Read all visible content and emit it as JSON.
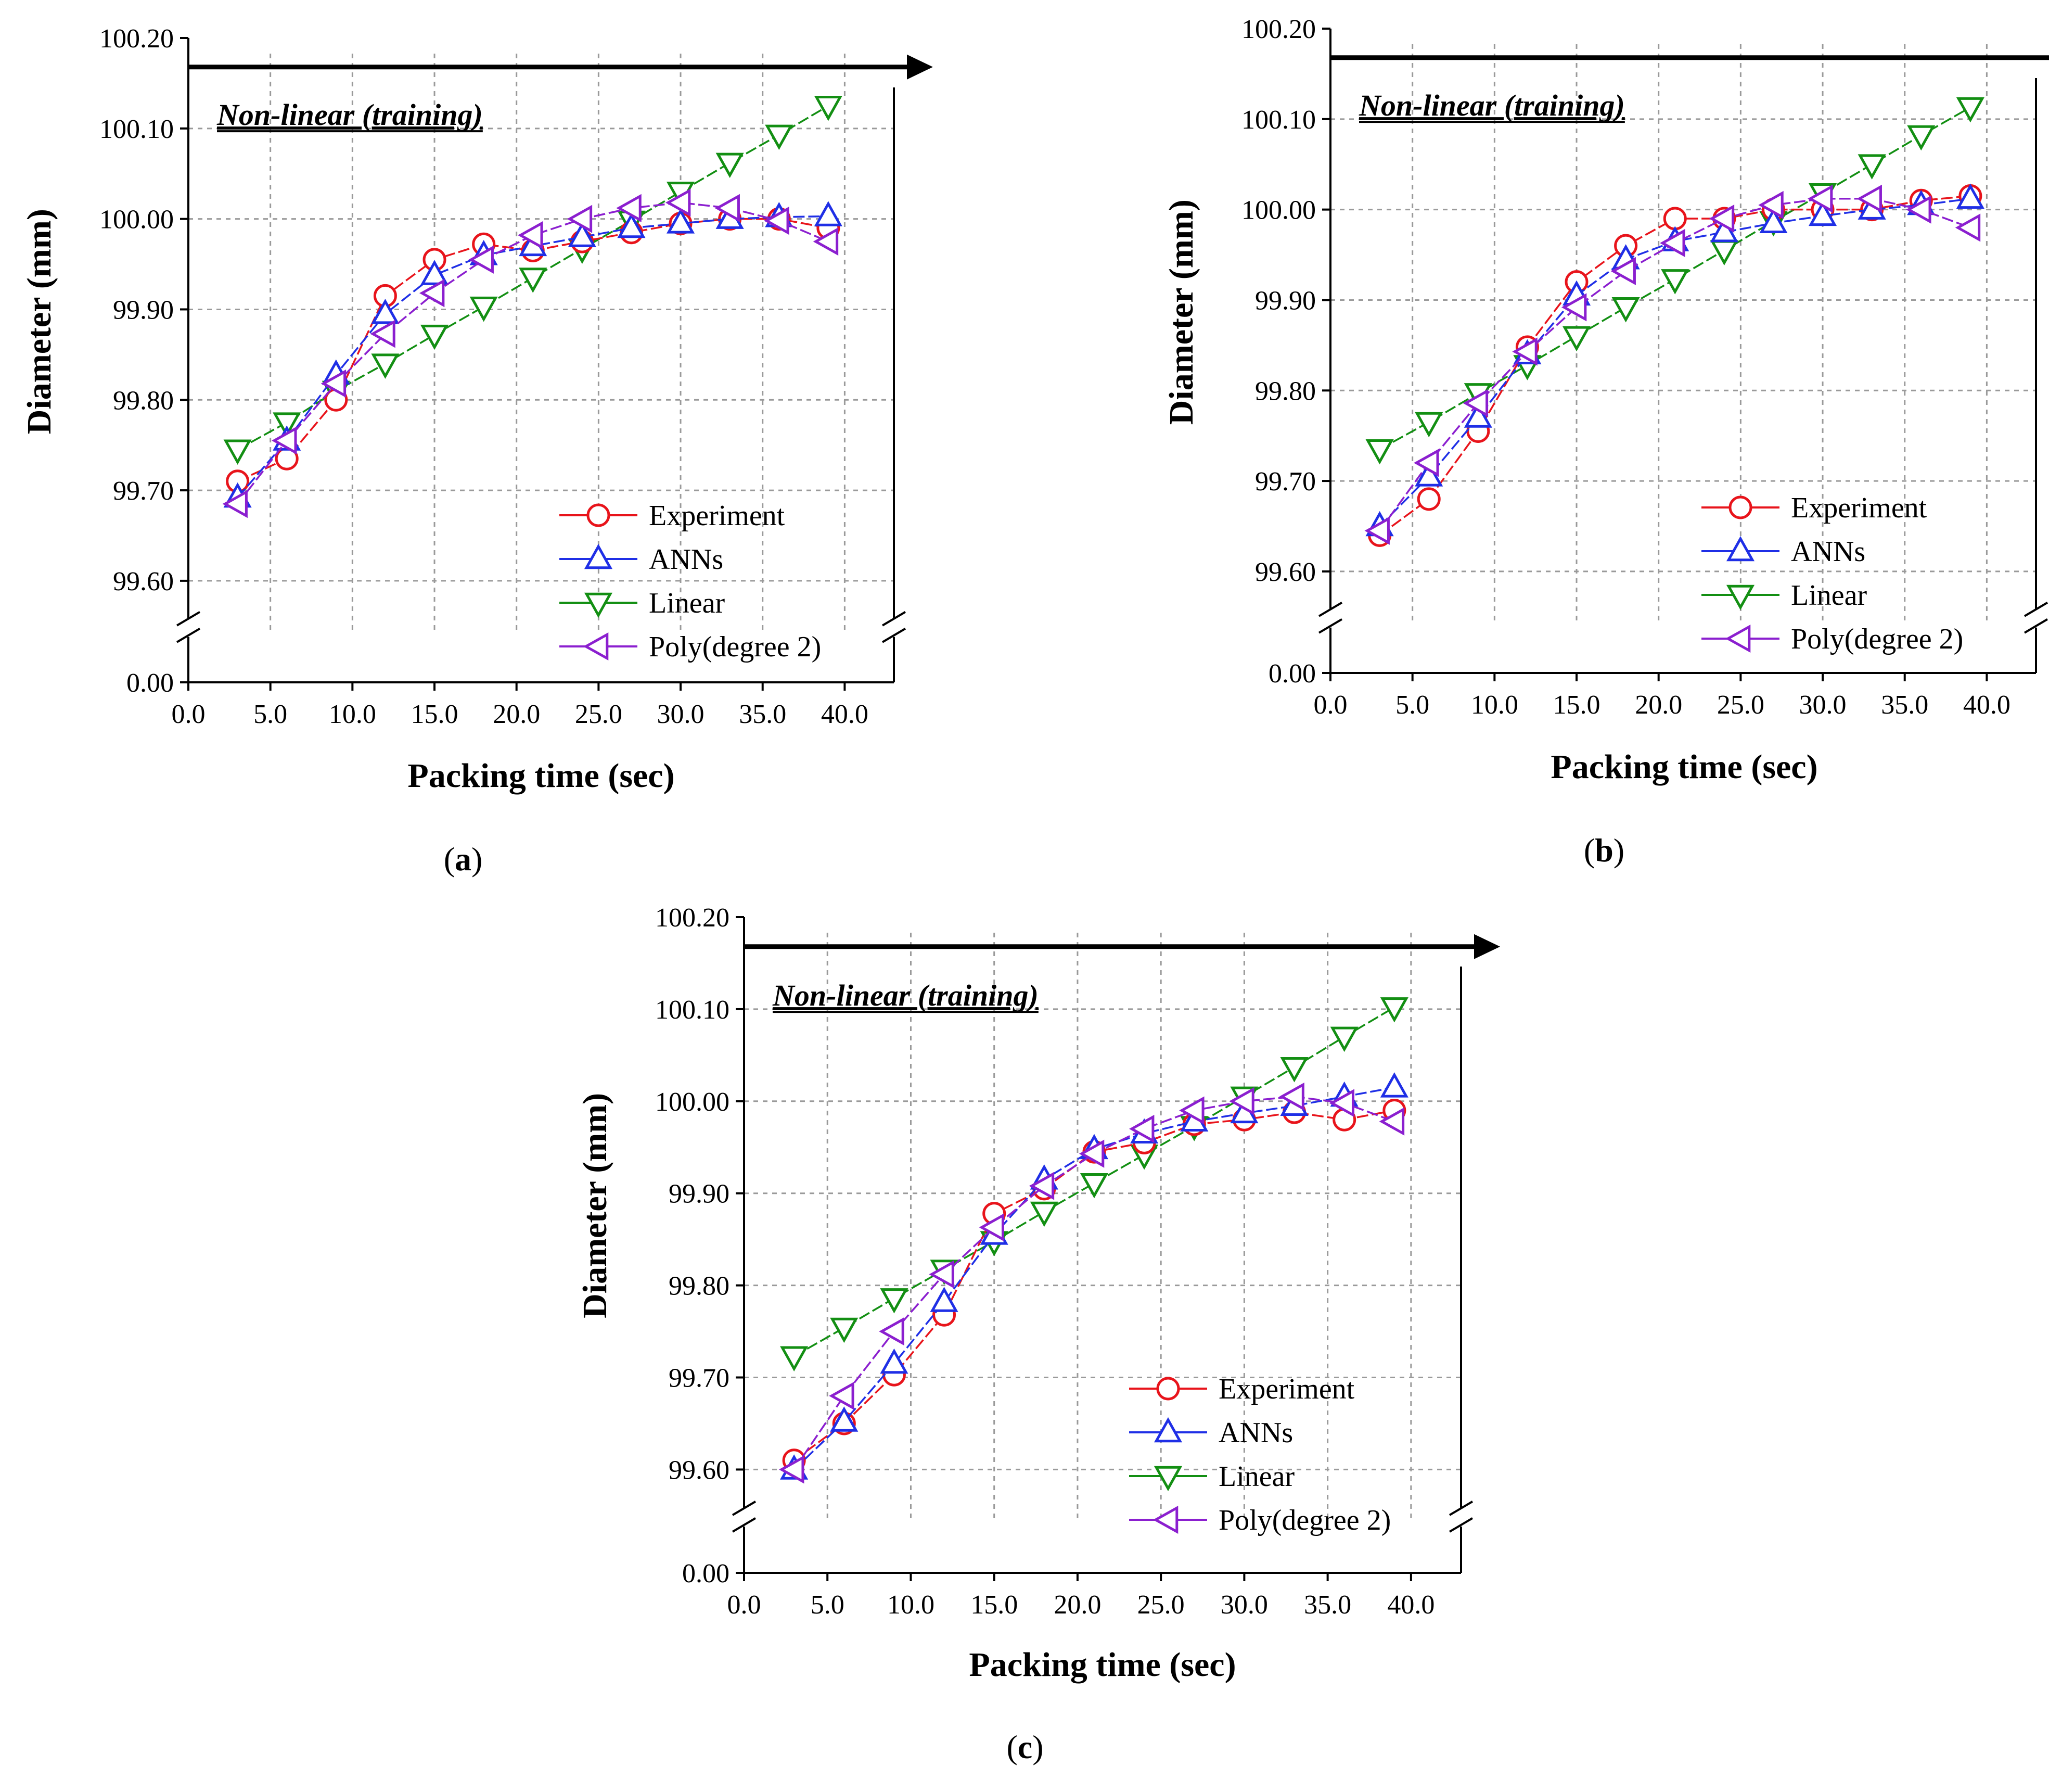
{
  "figure": {
    "panels": [
      "a",
      "b",
      "c"
    ]
  },
  "colors": {
    "Experiment": "#e8141b",
    "ANNs": "#1f2fe6",
    "Linear": "#138f13",
    "Poly(degree 2)": "#8b1fcf"
  },
  "chart_data": [
    {
      "panel": "a",
      "type": "line",
      "xlabel": "Packing time (sec)",
      "ylabel": "Diameter (mm)",
      "annotation": "Non-linear (training)",
      "x_ticks": [
        "0.0",
        "5.0",
        "10.0",
        "15.0",
        "20.0",
        "25.0",
        "30.0",
        "35.0",
        "40.0"
      ],
      "y_ticks": [
        "0.00",
        "99.60",
        "99.70",
        "99.80",
        "99.90",
        "100.00",
        "100.10",
        "100.20"
      ],
      "xlim": [
        0,
        43
      ],
      "ylim_broken": [
        99.55,
        100.2
      ],
      "legend_position": "lower-right",
      "x": [
        3,
        6,
        9,
        12,
        15,
        18,
        21,
        24,
        27,
        30,
        33,
        36,
        39
      ],
      "series": [
        {
          "name": "Experiment",
          "marker": "circle",
          "values": [
            99.71,
            99.735,
            99.8,
            99.915,
            99.955,
            99.972,
            99.965,
            99.975,
            99.985,
            99.995,
            100.0,
            100.0,
            99.99
          ]
        },
        {
          "name": "ANNs",
          "marker": "triangle-up",
          "values": [
            99.692,
            99.755,
            99.828,
            99.895,
            99.938,
            99.96,
            99.97,
            99.98,
            99.99,
            99.995,
            100.0,
            100.002,
            100.003
          ]
        },
        {
          "name": "Linear",
          "marker": "triangle-down",
          "values": [
            99.745,
            99.775,
            99.81,
            99.84,
            99.872,
            99.903,
            99.935,
            99.967,
            99.998,
            100.03,
            100.062,
            100.093,
            100.125
          ]
        },
        {
          "name": "Poly(degree 2)",
          "marker": "triangle-left",
          "values": [
            99.685,
            99.755,
            99.818,
            99.873,
            99.918,
            99.955,
            99.982,
            100.0,
            100.012,
            100.018,
            100.012,
            99.998,
            99.975
          ]
        }
      ]
    },
    {
      "panel": "b",
      "type": "line",
      "xlabel": "Packing time (sec)",
      "ylabel": "Diameter (mm)",
      "annotation": "Non-linear (training)",
      "x_ticks": [
        "0.0",
        "5.0",
        "10.0",
        "15.0",
        "20.0",
        "25.0",
        "30.0",
        "35.0",
        "40.0"
      ],
      "y_ticks": [
        "0.00",
        "99.60",
        "99.70",
        "99.80",
        "99.90",
        "100.00",
        "100.10",
        "100.20"
      ],
      "xlim": [
        0,
        43
      ],
      "ylim_broken": [
        99.55,
        100.2
      ],
      "legend_position": "lower-right",
      "x": [
        3,
        6,
        9,
        12,
        15,
        18,
        21,
        24,
        27,
        30,
        33,
        36,
        39
      ],
      "series": [
        {
          "name": "Experiment",
          "marker": "circle",
          "values": [
            99.64,
            99.68,
            99.755,
            99.848,
            99.92,
            99.96,
            99.99,
            99.99,
            100.0,
            100.0,
            100.0,
            100.01,
            100.015
          ]
        },
        {
          "name": "ANNs",
          "marker": "triangle-up",
          "values": [
            99.65,
            99.705,
            99.77,
            99.84,
            99.905,
            99.945,
            99.965,
            99.975,
            99.985,
            99.993,
            100.0,
            100.005,
            100.012
          ]
        },
        {
          "name": "Linear",
          "marker": "triangle-down",
          "values": [
            99.735,
            99.765,
            99.797,
            99.828,
            99.86,
            99.892,
            99.923,
            99.955,
            99.987,
            100.018,
            100.05,
            100.082,
            100.113
          ]
        },
        {
          "name": "Poly(degree 2)",
          "marker": "triangle-left",
          "values": [
            99.645,
            99.72,
            99.786,
            99.843,
            99.892,
            99.932,
            99.963,
            99.99,
            100.005,
            100.012,
            100.012,
            100.0,
            99.98
          ]
        }
      ]
    },
    {
      "panel": "c",
      "type": "line",
      "xlabel": "Packing time (sec)",
      "ylabel": "Diameter (mm)",
      "annotation": "Non-linear (training)",
      "x_ticks": [
        "0.0",
        "5.0",
        "10.0",
        "15.0",
        "20.0",
        "25.0",
        "30.0",
        "35.0",
        "40.0"
      ],
      "y_ticks": [
        "0.00",
        "99.60",
        "99.70",
        "99.80",
        "99.90",
        "100.00",
        "100.10",
        "100.20"
      ],
      "xlim": [
        0,
        43
      ],
      "ylim_broken": [
        99.55,
        100.2
      ],
      "legend_position": "lower-right",
      "x": [
        3,
        6,
        9,
        12,
        15,
        18,
        21,
        24,
        27,
        30,
        33,
        36,
        39
      ],
      "series": [
        {
          "name": "Experiment",
          "marker": "circle",
          "values": [
            99.61,
            99.65,
            99.703,
            99.768,
            99.878,
            99.905,
            99.945,
            99.955,
            99.975,
            99.98,
            99.988,
            99.98,
            99.99
          ]
        },
        {
          "name": "ANNs",
          "marker": "triangle-up",
          "values": [
            99.6,
            99.652,
            99.715,
            99.782,
            99.855,
            99.915,
            99.948,
            99.965,
            99.978,
            99.987,
            99.995,
            100.005,
            100.015
          ]
        },
        {
          "name": "Linear",
          "marker": "triangle-down",
          "values": [
            99.723,
            99.754,
            99.786,
            99.817,
            99.848,
            99.88,
            99.911,
            99.942,
            99.973,
            100.005,
            100.037,
            100.07,
            100.102
          ]
        },
        {
          "name": "Poly(degree 2)",
          "marker": "triangle-left",
          "values": [
            99.6,
            99.68,
            99.75,
            99.812,
            99.863,
            99.908,
            99.943,
            99.97,
            99.99,
            100.0,
            100.005,
            99.998,
            99.978
          ]
        }
      ]
    }
  ]
}
